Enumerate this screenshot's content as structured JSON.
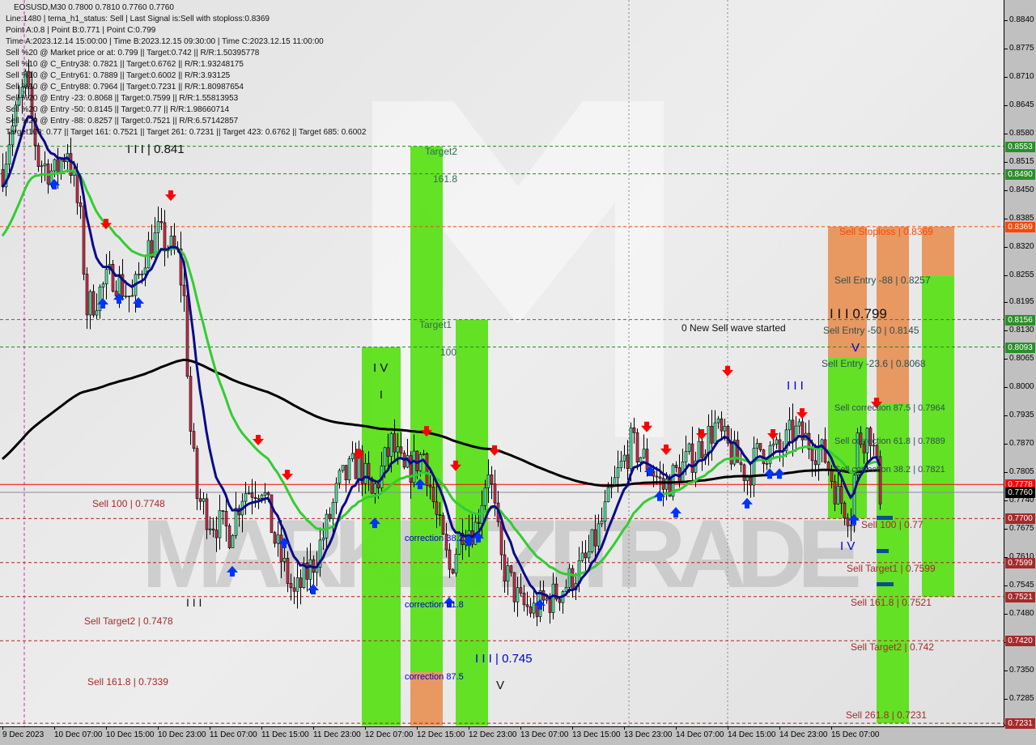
{
  "header": {
    "symbol_line": "EOSUSD,M30  0.7800 0.7810 0.7760 0.7760",
    "lines": [
      "Line:1480 | tema_h1_status: Sell | Last Signal is:Sell with stoploss:0.8369",
      "Point A:0.8 | Point B:0.771 | Point C:0.799",
      "Time A:2023.12.14 15:00:00 | Time B:2023.12.15 09:30:00 | Time C:2023.12.15 11:00:00",
      "Sell %20 @ Market price or at: 0.799 || Target:0.742 || R/R:1.50395778",
      "Sell %10 @ C_Entry38: 0.7821 || Target:0.6762 || R/R:1.93248175",
      "Sell %10 @ C_Entry61: 0.7889 || Target:0.6002 || R/R:3.93125",
      "Sell %10 @ C_Entry88: 0.7964 || Target:0.7231 || R/R:1.80987654",
      "Sell %20 @ Entry -23: 0.8068 || Target:0.7599 || R/R:1.55813953",
      "Sell %20 @ Entry -50: 0.8145 || Target:0.77 || R/R:1.98660714",
      "Sell %20 @ Entry -88: 0.8257 || Target:0.7521 || R/R:6.57142857",
      "Target100: 0.77 || Target 161: 0.7521 || Target 261: 0.7231 || Target 423: 0.6762 || Target 685: 0.6002"
    ]
  },
  "watermark": "MARKETZITRADE",
  "chart_data": {
    "type": "candlestick",
    "symbol": "EOSUSD",
    "timeframe": "M30",
    "ohlc": {
      "open": 0.78,
      "high": 0.781,
      "low": 0.776,
      "close": 0.776
    },
    "ylim": [
      0.7225,
      0.888
    ],
    "grid": false,
    "colors": {
      "bull": "#52e3a2",
      "bear": "#c8304a",
      "fast_ma": "#0a0a8a",
      "mid_ma": "#33cc33",
      "slow_ma": "#000000",
      "zone_green": "#5ce01a",
      "zone_orange": "#e8945a",
      "level_green": "#1e8c1e",
      "level_red": "#b22222",
      "stoploss": "#ff4500"
    },
    "price_path": [
      [
        "2023.12.09 23:00",
        0.85
      ],
      [
        "2023.12.10 00:00",
        0.857
      ],
      [
        "2023.12.10 02:30",
        0.87
      ],
      [
        "2023.12.10 04:30",
        0.852
      ],
      [
        "2023.12.10 07:00",
        0.849
      ],
      [
        "2023.12.10 09:00",
        0.855
      ],
      [
        "2023.12.10 11:00",
        0.838
      ],
      [
        "2023.12.10 12:00",
        0.818
      ],
      [
        "2023.12.10 14:00",
        0.822
      ],
      [
        "2023.12.10 16:00",
        0.826
      ],
      [
        "2023.12.10 19:00",
        0.82
      ],
      [
        "2023.12.10 21:00",
        0.831
      ],
      [
        "2023.12.10 23:00",
        0.835
      ],
      [
        "2023.12.11 02:00",
        0.83
      ],
      [
        "2023.12.11 03:00",
        0.82
      ],
      [
        "2023.12.11 04:00",
        0.79
      ],
      [
        "2023.12.11 05:00",
        0.775
      ],
      [
        "2023.12.11 07:00",
        0.77
      ],
      [
        "2023.12.11 10:00",
        0.767
      ],
      [
        "2023.12.11 12:00",
        0.776
      ],
      [
        "2023.12.11 15:00",
        0.778
      ],
      [
        "2023.12.11 17:00",
        0.765
      ],
      [
        "2023.12.11 20:00",
        0.752
      ],
      [
        "2023.12.11 23:00",
        0.76
      ],
      [
        "2023.12.12 01:00",
        0.768
      ],
      [
        "2023.12.12 03:00",
        0.778
      ],
      [
        "2023.12.12 06:00",
        0.783
      ],
      [
        "2023.12.12 08:00",
        0.775
      ],
      [
        "2023.12.12 11:00",
        0.787
      ],
      [
        "2023.12.12 13:00",
        0.78
      ],
      [
        "2023.12.12 16:00",
        0.785
      ],
      [
        "2023.12.12 18:00",
        0.77
      ],
      [
        "2023.12.12 20:00",
        0.758
      ],
      [
        "2023.12.12 22:00",
        0.768
      ],
      [
        "2023.12.13 00:00",
        0.768
      ],
      [
        "2023.12.13 02:00",
        0.782
      ],
      [
        "2023.12.13 04:00",
        0.76
      ],
      [
        "2023.12.13 07:00",
        0.75
      ],
      [
        "2023.12.13 09:00",
        0.749
      ],
      [
        "2023.12.13 12:00",
        0.752
      ],
      [
        "2023.12.13 14:00",
        0.755
      ],
      [
        "2023.12.13 17:00",
        0.76
      ],
      [
        "2023.12.13 19:00",
        0.767
      ],
      [
        "2023.12.13 22:00",
        0.78
      ],
      [
        "2023.12.14 00:00",
        0.787
      ],
      [
        "2023.12.14 03:00",
        0.782
      ],
      [
        "2023.12.14 05:00",
        0.777
      ],
      [
        "2023.12.14 08:00",
        0.782
      ],
      [
        "2023.12.14 10:00",
        0.785
      ],
      [
        "2023.12.14 13:00",
        0.791
      ],
      [
        "2023.12.14 15:00",
        0.786
      ],
      [
        "2023.12.14 18:00",
        0.78
      ],
      [
        "2023.12.14 20:00",
        0.786
      ],
      [
        "2023.12.14 23:00",
        0.785
      ],
      [
        "2023.12.15 01:00",
        0.79
      ],
      [
        "2023.12.15 04:00",
        0.787
      ],
      [
        "2023.12.15 06:00",
        0.784
      ],
      [
        "2023.12.15 08:00",
        0.775
      ],
      [
        "2023.12.15 10:00",
        0.771
      ],
      [
        "2023.12.15 11:00",
        0.788
      ],
      [
        "2023.12.15 13:00",
        0.79
      ],
      [
        "2023.12.15 14:30",
        0.776
      ]
    ],
    "y_ticks": [
      "0.8840",
      "0.8775",
      "0.8710",
      "0.8645",
      "0.8580",
      "0.8515",
      "0.8450",
      "0.8385",
      "0.8320",
      "0.8255",
      "0.8195",
      "0.8130",
      "0.8065",
      "0.8000",
      "0.7935",
      "0.7870",
      "0.7805",
      "0.7740",
      "0.7675",
      "0.7610",
      "0.7545",
      "0.7480",
      "0.7415",
      "0.7350",
      "0.7285",
      "0.7225"
    ],
    "x_ticks": [
      "9 Dec 2023",
      "10 Dec 07:00",
      "10 Dec 15:00",
      "10 Dec 23:00",
      "11 Dec 07:00",
      "11 Dec 15:00",
      "11 Dec 23:00",
      "12 Dec 07:00",
      "12 Dec 15:00",
      "12 Dec 23:00",
      "13 Dec 07:00",
      "13 Dec 15:00",
      "13 Dec 23:00",
      "14 Dec 07:00",
      "14 Dec 15:00",
      "14 Dec 23:00",
      "15 Dec 07:00"
    ],
    "price_badges": [
      {
        "value": "0.8553",
        "color": "#2a8f2a"
      },
      {
        "value": "0.8490",
        "color": "#2a8f2a"
      },
      {
        "value": "0.8369",
        "color": "#ff4500"
      },
      {
        "value": "0.8156",
        "color": "#2a8f2a"
      },
      {
        "value": "0.8093",
        "color": "#2a8f2a"
      },
      {
        "value": "0.7778",
        "color": "#ff0000"
      },
      {
        "value": "0.7760",
        "color": "#000000"
      },
      {
        "value": "0.7700",
        "color": "#a52a2a"
      },
      {
        "value": "0.7599",
        "color": "#a52a2a"
      },
      {
        "value": "0.7521",
        "color": "#a52a2a"
      },
      {
        "value": "0.7420",
        "color": "#a52a2a"
      },
      {
        "value": "0.7231",
        "color": "#a52a2a"
      }
    ],
    "levels": [
      {
        "price": 0.8553,
        "style": "green"
      },
      {
        "price": 0.849,
        "style": "green"
      },
      {
        "price": 0.8156,
        "style": "green"
      },
      {
        "price": 0.8093,
        "style": "green"
      },
      {
        "price": 0.8369,
        "style": "stoploss"
      },
      {
        "price": 0.77,
        "style": "red"
      },
      {
        "price": 0.7599,
        "style": "red"
      },
      {
        "price": 0.7521,
        "style": "red"
      },
      {
        "price": 0.742,
        "style": "red"
      },
      {
        "price": 0.7231,
        "style": "red"
      },
      {
        "price": 0.7778,
        "style": "bid"
      },
      {
        "price": 0.776,
        "style": "last"
      }
    ],
    "zones": [
      {
        "from": "2023.12.12 06:30",
        "to": "2023.12.12 12:30",
        "parts": [
          {
            "top": 0.8093,
            "bottom": 0.7225,
            "color": "green"
          }
        ]
      },
      {
        "from": "2023.12.12 14:00",
        "to": "2023.12.12 19:00",
        "parts": [
          {
            "top": 0.8553,
            "bottom": 0.7348,
            "color": "green"
          },
          {
            "top": 0.7348,
            "bottom": 0.7225,
            "color": "orange"
          }
        ]
      },
      {
        "from": "2023.12.12 21:00",
        "to": "2023.12.13 02:00",
        "parts": [
          {
            "top": 0.8156,
            "bottom": 0.7225,
            "color": "green"
          }
        ]
      },
      {
        "from": "2023.12.15 06:30",
        "to": "2023.12.15 12:30",
        "parts": [
          {
            "top": 0.8369,
            "bottom": 0.8068,
            "color": "orange"
          },
          {
            "top": 0.8068,
            "bottom": 0.77,
            "color": "green"
          }
        ]
      },
      {
        "from": "2023.12.15 14:00",
        "to": "2023.12.15 19:00",
        "parts": [
          {
            "top": 0.8369,
            "bottom": 0.7964,
            "color": "orange"
          },
          {
            "top": 0.7964,
            "bottom": 0.7231,
            "color": "green"
          }
        ]
      },
      {
        "from": "2023.12.15 21:00",
        "to": "2023.12.16 02:00",
        "parts": [
          {
            "top": 0.8369,
            "bottom": 0.8257,
            "color": "orange"
          },
          {
            "top": 0.8257,
            "bottom": 0.7521,
            "color": "green"
          }
        ]
      }
    ],
    "signals": [
      {
        "t": "2023.12.10 15:00",
        "p": 0.8372,
        "dir": "down"
      },
      {
        "t": "2023.12.11 01:00",
        "p": 0.8437,
        "dir": "down"
      },
      {
        "t": "2023.12.11 14:30",
        "p": 0.7877,
        "dir": "down"
      },
      {
        "t": "2023.12.11 19:00",
        "p": 0.7797,
        "dir": "down"
      },
      {
        "t": "2023.12.12 06:00",
        "p": 0.7845,
        "dir": "down"
      },
      {
        "t": "2023.12.12 16:30",
        "p": 0.7897,
        "dir": "down"
      },
      {
        "t": "2023.12.12 21:00",
        "p": 0.7818,
        "dir": "down"
      },
      {
        "t": "2023.12.13 03:00",
        "p": 0.7853,
        "dir": "down"
      },
      {
        "t": "2023.12.14 02:30",
        "p": 0.7907,
        "dir": "down"
      },
      {
        "t": "2023.12.14 05:30",
        "p": 0.7855,
        "dir": "down"
      },
      {
        "t": "2023.12.14 11:00",
        "p": 0.789,
        "dir": "down"
      },
      {
        "t": "2023.12.14 15:00",
        "p": 0.8035,
        "dir": "down"
      },
      {
        "t": "2023.12.14 22:00",
        "p": 0.789,
        "dir": "down"
      },
      {
        "t": "2023.12.15 02:30",
        "p": 0.7938,
        "dir": "down"
      },
      {
        "t": "2023.12.15 14:00",
        "p": 0.7962,
        "dir": "down"
      },
      {
        "t": "2023.12.10 07:00",
        "p": 0.8469,
        "dir": "up"
      },
      {
        "t": "2023.12.10 14:30",
        "p": 0.8196,
        "dir": "up"
      },
      {
        "t": "2023.12.10 17:00",
        "p": 0.8207,
        "dir": "up"
      },
      {
        "t": "2023.12.10 20:00",
        "p": 0.8198,
        "dir": "up"
      },
      {
        "t": "2023.12.11 10:30",
        "p": 0.7582,
        "dir": "up"
      },
      {
        "t": "2023.12.11 18:30",
        "p": 0.7647,
        "dir": "up"
      },
      {
        "t": "2023.12.11 23:00",
        "p": 0.7541,
        "dir": "up"
      },
      {
        "t": "2023.12.12 08:30",
        "p": 0.7693,
        "dir": "up"
      },
      {
        "t": "2023.12.12 15:30",
        "p": 0.7782,
        "dir": "up"
      },
      {
        "t": "2023.12.12 20:00",
        "p": 0.7511,
        "dir": "up"
      },
      {
        "t": "2023.12.12 23:00",
        "p": 0.7652,
        "dir": "up"
      },
      {
        "t": "2023.12.13 00:30",
        "p": 0.766,
        "dir": "up"
      },
      {
        "t": "2023.12.13 10:00",
        "p": 0.7506,
        "dir": "up"
      },
      {
        "t": "2023.12.14 03:00",
        "p": 0.7812,
        "dir": "up"
      },
      {
        "t": "2023.12.14 04:30",
        "p": 0.7755,
        "dir": "up"
      },
      {
        "t": "2023.12.14 07:00",
        "p": 0.7717,
        "dir": "up"
      },
      {
        "t": "2023.12.14 18:00",
        "p": 0.7738,
        "dir": "up"
      },
      {
        "t": "2023.12.14 21:30",
        "p": 0.7806,
        "dir": "up"
      },
      {
        "t": "2023.12.14 23:00",
        "p": 0.7806,
        "dir": "up"
      },
      {
        "t": "2023.12.15 10:30",
        "p": 0.7701,
        "dir": "up"
      }
    ],
    "annotations": {
      "left_sell100": "Sell 100 | 0.7748",
      "left_target2": "Sell Target2 | 0.7478",
      "left_161": "Sell 161.8 | 0.7339",
      "wave3_top": "I I I | 0.841",
      "wave3_low": "I I I",
      "wave4": "I V",
      "wave1": "I",
      "target2": "Target2",
      "fib1618": "161.8",
      "target1": "Target1",
      "fib100": "100",
      "corr382": "correction 38.2",
      "corr618": "correction 61.8",
      "corr875": "correction 87.5",
      "wave3_745": "I I I | 0.745",
      "wave5": "V",
      "new_wave": "0 New Sell wave started",
      "wave3_right": "I I I",
      "wave3_799": "I I I 0.799",
      "wave5_right": "V",
      "wave4_right": "I V",
      "stoploss": "Sell Stoploss | 0.8369",
      "entry88": "Sell Entry -88 | 0.8257",
      "entry50": "Sell Entry -50 | 0.8145",
      "entry236": "Sell Entry -23.6 | 0.8068",
      "c875": "Sell correction 87.5 | 0.7964",
      "c618": "Sell correction 61.8 | 0.7889",
      "c382": "Sell correction 38.2 | 0.7821",
      "s100": "Sell 100 | 0.77",
      "t1": "Sell Target1 | 0.7599",
      "s1618": "Sell 161.8 | 0.7521",
      "t2": "Sell Target2 | 0.742",
      "s2618": "Sell 261.8 | 0.7231"
    }
  }
}
